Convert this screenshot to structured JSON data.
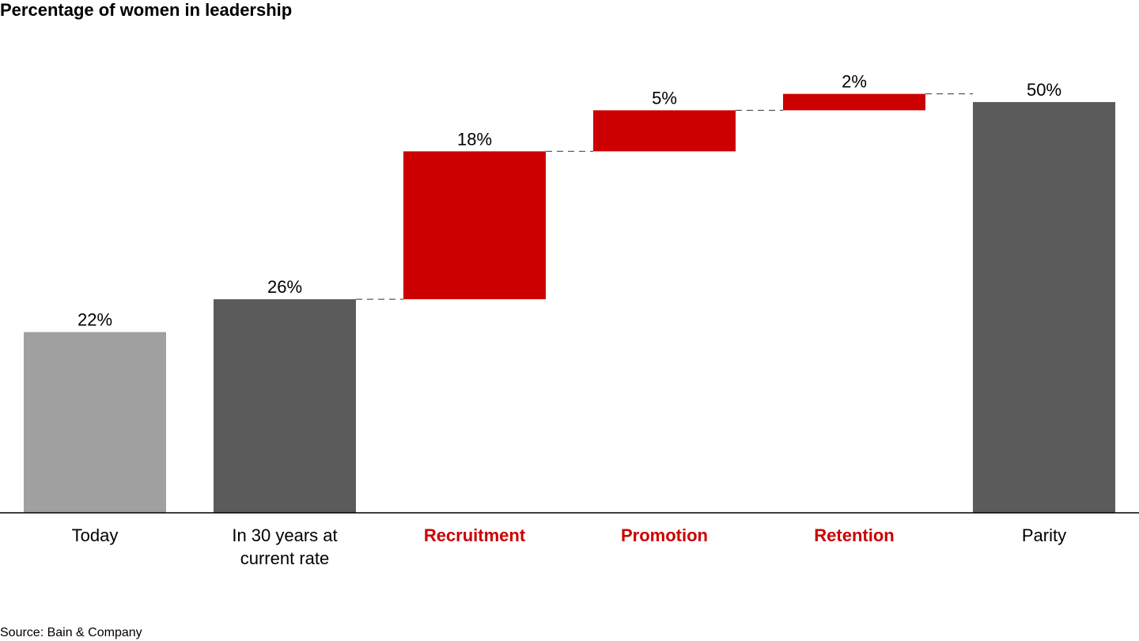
{
  "chart_data": {
    "type": "bar",
    "subtype": "waterfall",
    "title": "Percentage of women in leadership",
    "categories": [
      "Today",
      "In 30 years at current rate",
      "Recruitment",
      "Promotion",
      "Retention",
      "Parity"
    ],
    "category_lines": [
      [
        "Today"
      ],
      [
        "In 30 years at",
        "current rate"
      ],
      [
        "Recruitment"
      ],
      [
        "Promotion"
      ],
      [
        "Retention"
      ],
      [
        "Parity"
      ]
    ],
    "values": [
      22,
      26,
      18,
      5,
      2,
      50
    ],
    "value_labels": [
      "22%",
      "26%",
      "18%",
      "5%",
      "2%",
      "50%"
    ],
    "bar_kinds": [
      "total",
      "total",
      "increment",
      "increment",
      "increment",
      "total"
    ],
    "increment_base": [
      0,
      0,
      26,
      44,
      49,
      0
    ],
    "ylim": [
      0,
      50
    ],
    "connectors": "dashed",
    "grid": false,
    "colors": {
      "today": "#a0a0a0",
      "total": "#5b5b5b",
      "increment": "#cc0000",
      "increment_label": "#cc0000",
      "axis": "#000000"
    },
    "source": "Source: Bain & Company"
  }
}
